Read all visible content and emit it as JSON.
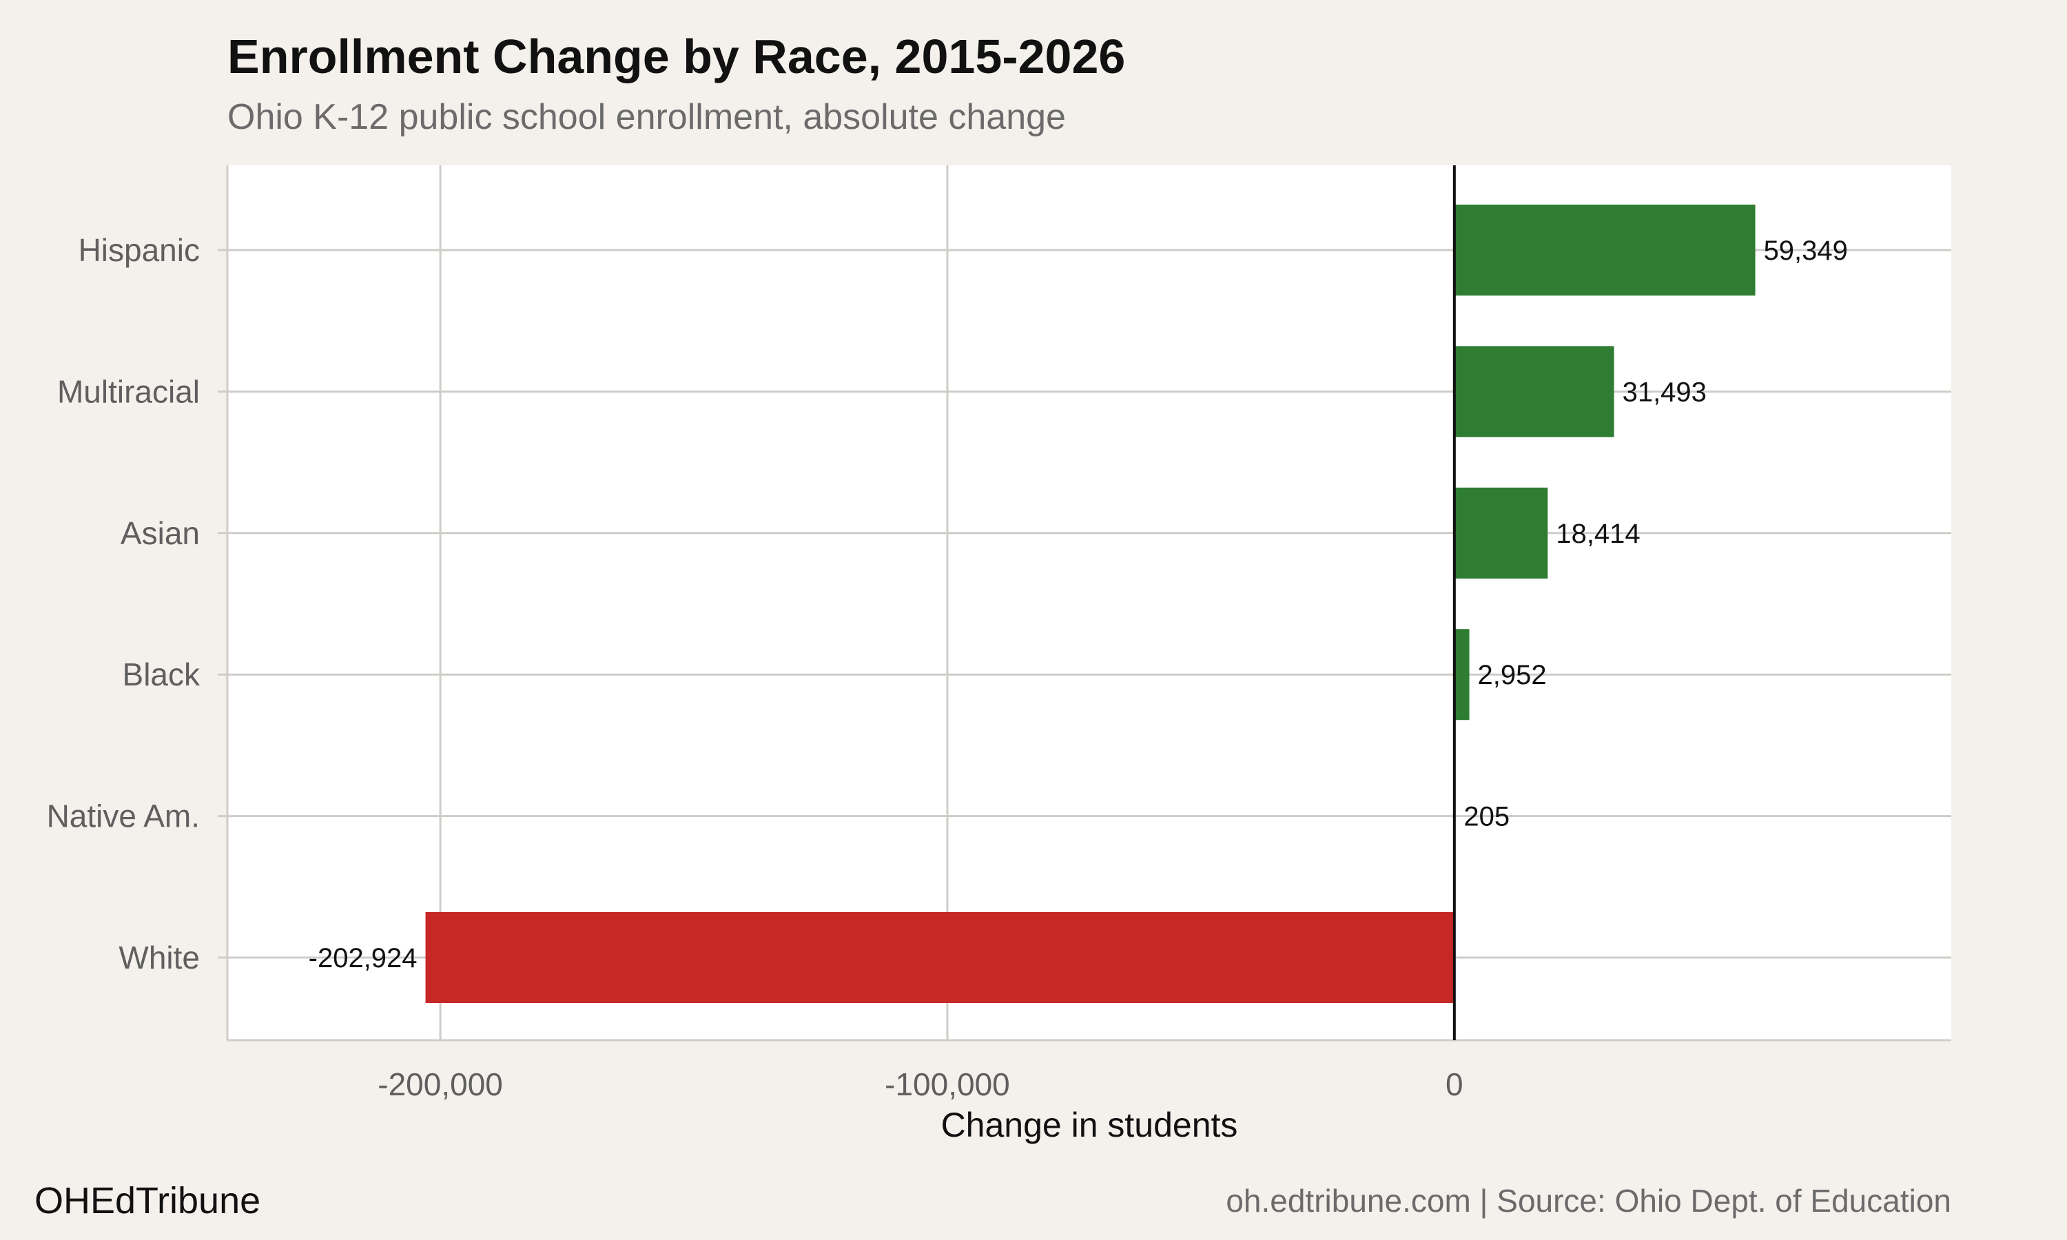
{
  "chart_data": {
    "type": "bar",
    "orientation": "horizontal",
    "title": "Enrollment Change by Race, 2015-2026",
    "subtitle": "Ohio K-12 public school enrollment, absolute change",
    "xlabel": "Change in students",
    "ylabel": "",
    "categories": [
      "Hispanic",
      "Multiracial",
      "Asian",
      "Black",
      "Native Am.",
      "White"
    ],
    "values": [
      59349,
      31493,
      18414,
      2952,
      205,
      -202924
    ],
    "data_labels": [
      "59,349",
      "31,493",
      "18,414",
      "2,952",
      "205",
      "-202,924"
    ],
    "xlim": [
      -242000,
      98000
    ],
    "xticks": [
      -200000,
      -100000,
      0
    ],
    "xtick_labels": [
      "-200,000",
      "-100,000",
      "0"
    ],
    "grid": true,
    "legend": "none",
    "colors": {
      "positive": "#2e7d32",
      "negative": "#c62828",
      "panel": "#ffffff",
      "background": "#f4f1ec",
      "grid": "#cfcdc8",
      "zero_line": "#111111"
    }
  },
  "footer": {
    "brand": "OHEdTribune",
    "source": "oh.edtribune.com | Source: Ohio Dept. of Education"
  }
}
